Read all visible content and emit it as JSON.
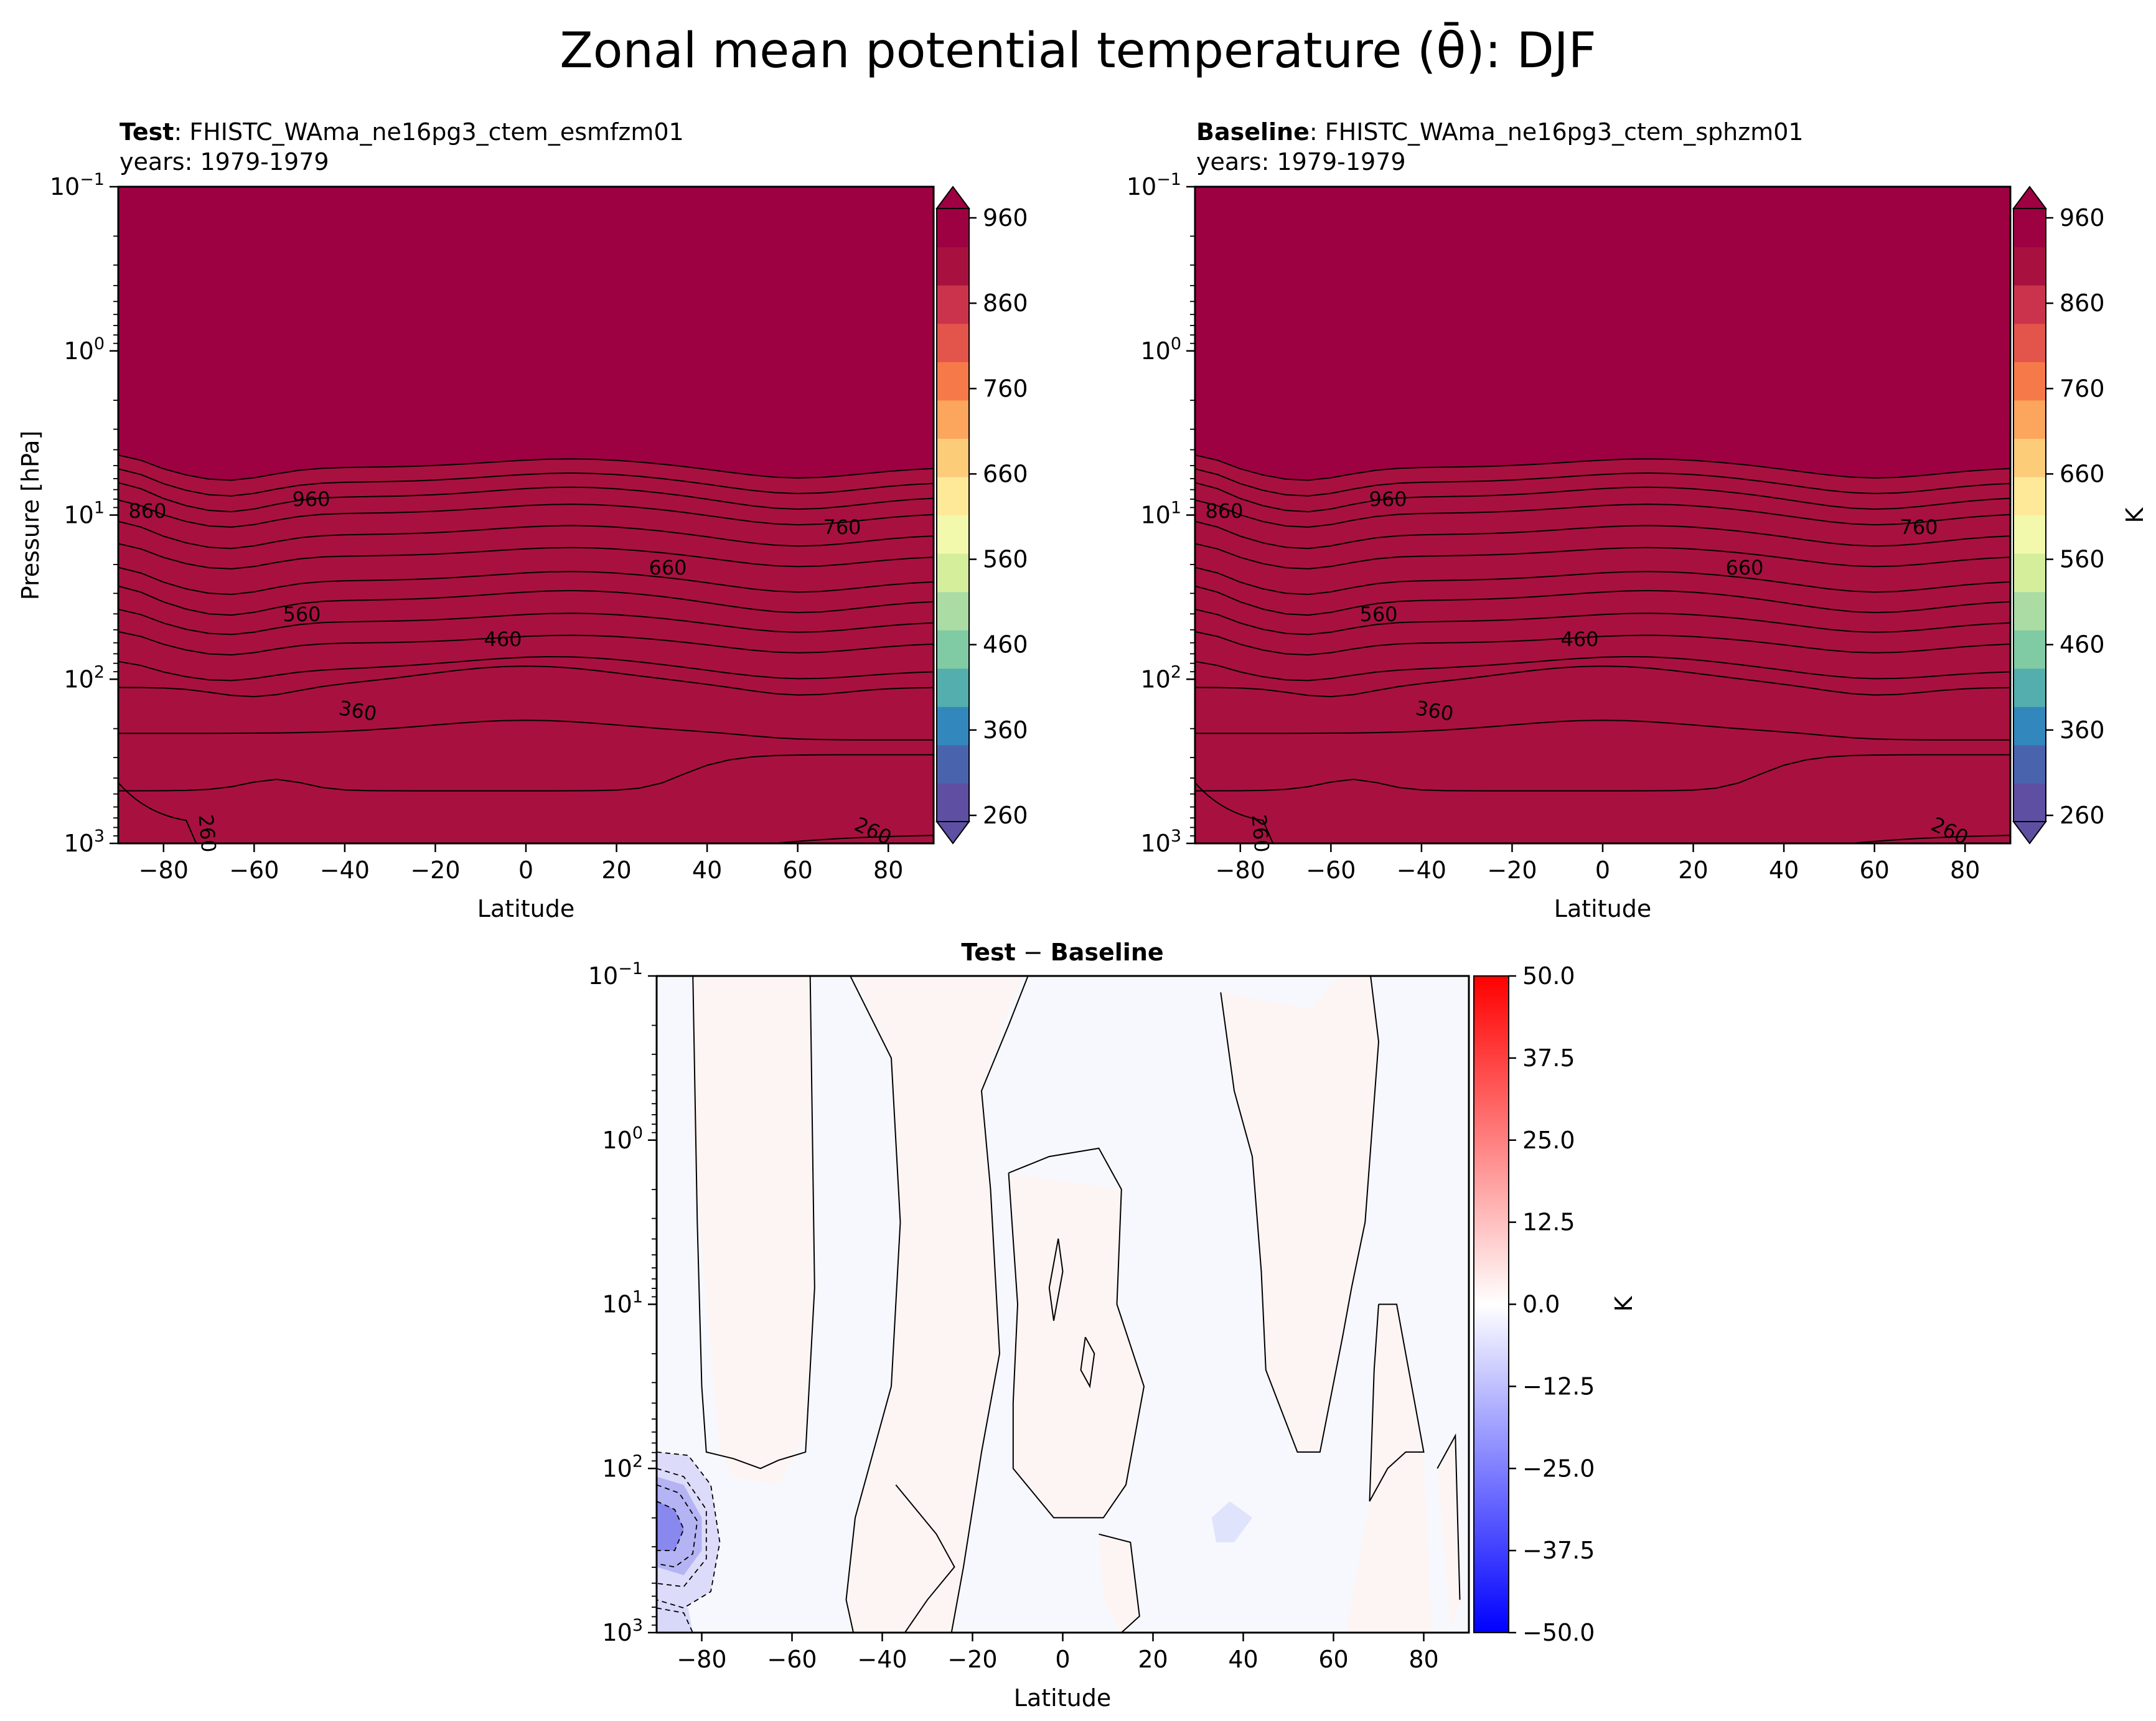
{
  "figure_title": "Zonal mean potential temperature (θ̄): DJF",
  "chart_data": [
    {
      "type": "contourf",
      "panel": "test",
      "title_bold": "Test",
      "title_rest": ": FHISTC_WAma_ne16pg3_ctem_esmfzm01",
      "subtitle": "years: 1979-1979",
      "xlabel": "Latitude",
      "ylabel": "Pressure [hPa]",
      "xlim": [
        -90,
        90
      ],
      "ylim": [
        1000,
        0.1
      ],
      "yscale": "log",
      "xticks": [
        "−80",
        "−60",
        "−40",
        "−20",
        "0",
        "20",
        "40",
        "60",
        "80"
      ],
      "yticks": [
        {
          "base": "10",
          "exp": "−1"
        },
        {
          "base": "10",
          "exp": "0"
        },
        {
          "base": "10",
          "exp": "1"
        },
        {
          "base": "10",
          "exp": "2"
        },
        {
          "base": "10",
          "exp": "3"
        }
      ],
      "contour_labels": [
        "960",
        "860",
        "760",
        "660",
        "560",
        "460",
        "360",
        "260",
        "260"
      ],
      "colorbar": {
        "label": "",
        "ticks": [
          "960",
          "860",
          "760",
          "660",
          "560",
          "460",
          "360",
          "260"
        ]
      }
    },
    {
      "type": "contourf",
      "panel": "baseline",
      "title_bold": "Baseline",
      "title_rest": ": FHISTC_WAma_ne16pg3_ctem_sphzm01",
      "subtitle": "years: 1979-1979",
      "xlabel": "Latitude",
      "ylabel": "",
      "xlim": [
        -90,
        90
      ],
      "ylim": [
        1000,
        0.1
      ],
      "yscale": "log",
      "xticks": [
        "−80",
        "−60",
        "−40",
        "−20",
        "0",
        "20",
        "40",
        "60",
        "80"
      ],
      "yticks": [
        {
          "base": "10",
          "exp": "−1"
        },
        {
          "base": "10",
          "exp": "0"
        },
        {
          "base": "10",
          "exp": "1"
        },
        {
          "base": "10",
          "exp": "2"
        },
        {
          "base": "10",
          "exp": "3"
        }
      ],
      "contour_labels": [
        "960",
        "860",
        "760",
        "660",
        "560",
        "460",
        "360",
        "260",
        "260"
      ],
      "colorbar": {
        "label": "K",
        "ticks": [
          "960",
          "860",
          "760",
          "660",
          "560",
          "460",
          "360",
          "260"
        ]
      }
    },
    {
      "type": "contourf",
      "panel": "difference",
      "title_bold": "Test",
      "title_mid": " − ",
      "title_bold2": "Baseline",
      "xlabel": "Latitude",
      "xlim": [
        -90,
        90
      ],
      "ylim": [
        1000,
        0.1
      ],
      "yscale": "log",
      "xticks": [
        "−80",
        "−60",
        "−40",
        "−20",
        "0",
        "20",
        "40",
        "60",
        "80"
      ],
      "yticks": [
        {
          "base": "10",
          "exp": "−1"
        },
        {
          "base": "10",
          "exp": "0"
        },
        {
          "base": "10",
          "exp": "1"
        },
        {
          "base": "10",
          "exp": "2"
        },
        {
          "base": "10",
          "exp": "3"
        }
      ],
      "colorbar": {
        "label": "K",
        "ticks": [
          "50.0",
          "37.5",
          "25.0",
          "12.5",
          "0.0",
          "−12.5",
          "−25.0",
          "−37.5",
          "−50.0"
        ]
      }
    }
  ],
  "colors": {
    "spectral": [
      "#5e4fa2",
      "#4a63ad",
      "#3288bd",
      "#54aead",
      "#80cba4",
      "#aadca4",
      "#d4ee9c",
      "#f2f9ad",
      "#fee999",
      "#fdcc79",
      "#fca55d",
      "#f67a49",
      "#e3544a",
      "#cb334c",
      "#a8113f",
      "#9e0142"
    ],
    "diff_pos": "#ff0000",
    "diff_neg": "#0000ff"
  }
}
